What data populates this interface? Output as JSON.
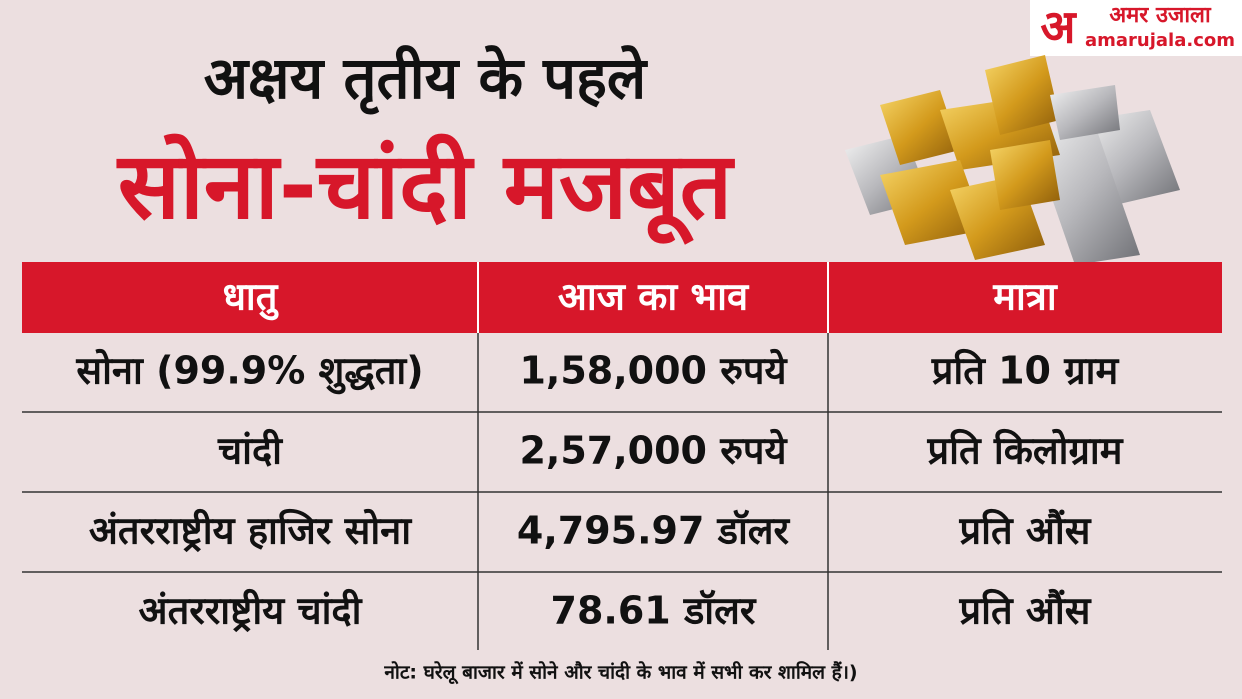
{
  "header": {
    "title_line1": "अक्षय तृतीय के पहले",
    "title_line2": "सोना-चांदी मजबूत"
  },
  "logo": {
    "mark": "अ",
    "name": "अमर उजाला",
    "site": "amarujala.com"
  },
  "table": {
    "columns": [
      "धातु",
      "आज का भाव",
      "मात्रा"
    ],
    "rows": [
      [
        "सोना (99.9% शुद्धता)",
        "1,58,000 रुपये",
        "प्रति 10 ग्राम"
      ],
      [
        "चांदी",
        "2,57,000 रुपये",
        "प्रति किलोग्राम"
      ],
      [
        "अंतरराष्ट्रीय हाजिर सोना",
        "4,795.97 डॉलर",
        "प्रति औंस"
      ],
      [
        "अंतरराष्ट्रीय चांदी",
        "78.61 डॉलर",
        "प्रति औंस"
      ]
    ]
  },
  "note": "नोट: घरेलू बाजार में सोने और चांदी के भाव में सभी कर शामिल हैं।)"
}
